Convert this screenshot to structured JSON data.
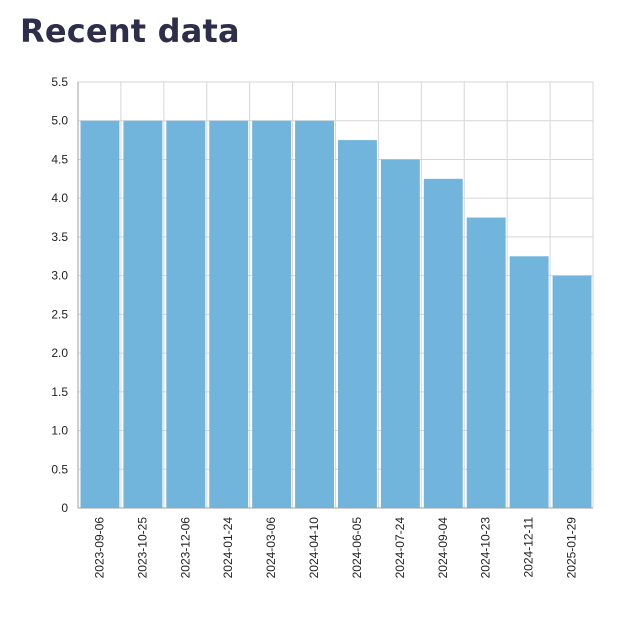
{
  "page": {
    "title": "Recent data"
  },
  "chart_data": {
    "type": "bar",
    "title": "",
    "xlabel": "",
    "ylabel": "",
    "categories": [
      "2023-09-06",
      "2023-10-25",
      "2023-12-06",
      "2024-01-24",
      "2024-03-06",
      "2024-04-10",
      "2024-06-05",
      "2024-07-24",
      "2024-09-04",
      "2024-10-23",
      "2024-12-11",
      "2025-01-29"
    ],
    "values": [
      5.0,
      5.0,
      5.0,
      5.0,
      5.0,
      5.0,
      4.75,
      4.5,
      4.25,
      3.75,
      3.25,
      3.0
    ],
    "ylim": [
      0,
      5.5
    ],
    "yticks": [
      "0",
      "0.5",
      "1.0",
      "1.5",
      "2.0",
      "2.5",
      "3.0",
      "3.5",
      "4.0",
      "4.5",
      "5.0",
      "5.5"
    ],
    "grid": true,
    "bar_color": "#72b5dc",
    "legend": "none"
  }
}
